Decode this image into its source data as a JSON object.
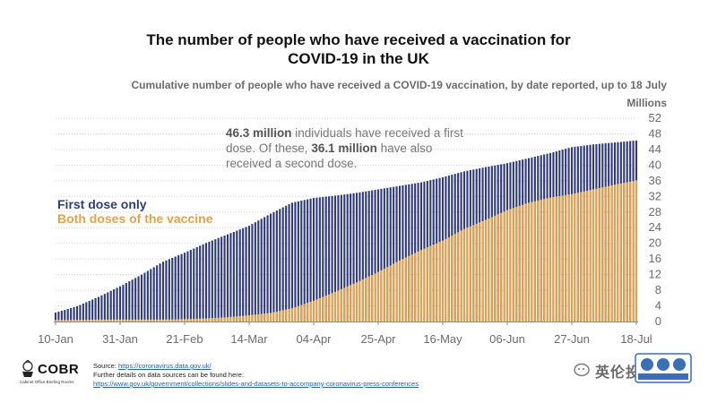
{
  "title_line1": "The number of people who have received a vaccination for",
  "title_line2": "COVID-19 in the UK",
  "subtitle": "Cumulative number of people who have received a COVID-19 vaccination, by date reported, up to 18 July",
  "unit": "Millions",
  "callout": {
    "first_value": "46.3 million",
    "first_text": " individuals have received a first dose. Of these, ",
    "second_value": "36.1 million",
    "second_text": " have also received a second dose."
  },
  "legend": {
    "first": "First dose only",
    "both": "Both doses of the vaccine"
  },
  "colors": {
    "first_dose": "#2f3b7a",
    "both_doses": "#e3a24a",
    "axis": "#8a8a8a",
    "grid": "#cfcfcf",
    "tick_text": "#6b6b6b"
  },
  "footer": {
    "logo_text": "COBR",
    "logo_sub": "Cabinet Office Briefing Rooms",
    "source_label": "Source: ",
    "source_link": "https://coronavirus.data.gov.uk/",
    "further_details": "Further details on data sources can be found here:",
    "further_link": "https://www.gov.uk/government/collections/slides-and-datasets-to-accompany-coronavirus-press-conferences"
  },
  "watermark": {
    "text": "英伦投资客"
  },
  "chart_data": {
    "type": "bar",
    "stacked": true,
    "x_tick_labels": [
      "10-Jan",
      "31-Jan",
      "21-Feb",
      "14-Mar",
      "04-Apr",
      "25-Apr",
      "16-May",
      "06-Jun",
      "27-Jun",
      "18-Jul"
    ],
    "x_start": "10-Jan",
    "x_end": "18-Jul",
    "y_ticks": [
      0,
      4,
      8,
      12,
      16,
      20,
      24,
      28,
      32,
      36,
      40,
      44,
      48,
      52
    ],
    "ylim": [
      0,
      52
    ],
    "ylabel": "Millions",
    "first_dose_cumulative": [
      {
        "date": "10-Jan",
        "value": 2.3
      },
      {
        "date": "17-Jan",
        "value": 3.9
      },
      {
        "date": "24-Jan",
        "value": 6.3
      },
      {
        "date": "31-Jan",
        "value": 9.0
      },
      {
        "date": "07-Feb",
        "value": 12.0
      },
      {
        "date": "14-Feb",
        "value": 15.3
      },
      {
        "date": "21-Feb",
        "value": 17.6
      },
      {
        "date": "28-Feb",
        "value": 20.1
      },
      {
        "date": "07-Mar",
        "value": 22.3
      },
      {
        "date": "14-Mar",
        "value": 24.5
      },
      {
        "date": "21-Mar",
        "value": 27.6
      },
      {
        "date": "28-Mar",
        "value": 30.4
      },
      {
        "date": "04-Apr",
        "value": 31.6
      },
      {
        "date": "11-Apr",
        "value": 32.2
      },
      {
        "date": "18-Apr",
        "value": 32.9
      },
      {
        "date": "25-Apr",
        "value": 33.8
      },
      {
        "date": "02-May",
        "value": 34.7
      },
      {
        "date": "09-May",
        "value": 35.6
      },
      {
        "date": "16-May",
        "value": 36.9
      },
      {
        "date": "23-May",
        "value": 38.4
      },
      {
        "date": "30-May",
        "value": 39.5
      },
      {
        "date": "06-Jun",
        "value": 40.5
      },
      {
        "date": "13-Jun",
        "value": 41.8
      },
      {
        "date": "20-Jun",
        "value": 43.1
      },
      {
        "date": "27-Jun",
        "value": 44.6
      },
      {
        "date": "04-Jul",
        "value": 45.3
      },
      {
        "date": "11-Jul",
        "value": 45.8
      },
      {
        "date": "18-Jul",
        "value": 46.3
      }
    ],
    "both_doses_cumulative": [
      {
        "date": "10-Jan",
        "value": 0.4
      },
      {
        "date": "17-Jan",
        "value": 0.4
      },
      {
        "date": "24-Jan",
        "value": 0.5
      },
      {
        "date": "31-Jan",
        "value": 0.5
      },
      {
        "date": "07-Feb",
        "value": 0.5
      },
      {
        "date": "14-Feb",
        "value": 0.5
      },
      {
        "date": "21-Feb",
        "value": 0.6
      },
      {
        "date": "28-Feb",
        "value": 0.8
      },
      {
        "date": "07-Mar",
        "value": 1.1
      },
      {
        "date": "14-Mar",
        "value": 1.6
      },
      {
        "date": "21-Mar",
        "value": 2.2
      },
      {
        "date": "28-Mar",
        "value": 3.4
      },
      {
        "date": "04-Apr",
        "value": 5.3
      },
      {
        "date": "11-Apr",
        "value": 7.6
      },
      {
        "date": "18-Apr",
        "value": 10.0
      },
      {
        "date": "25-Apr",
        "value": 12.7
      },
      {
        "date": "02-May",
        "value": 15.6
      },
      {
        "date": "09-May",
        "value": 18.3
      },
      {
        "date": "16-May",
        "value": 20.7
      },
      {
        "date": "23-May",
        "value": 23.7
      },
      {
        "date": "30-May",
        "value": 26.0
      },
      {
        "date": "06-Jun",
        "value": 28.5
      },
      {
        "date": "13-Jun",
        "value": 30.4
      },
      {
        "date": "20-Jun",
        "value": 31.7
      },
      {
        "date": "27-Jun",
        "value": 32.6
      },
      {
        "date": "04-Jul",
        "value": 33.8
      },
      {
        "date": "11-Jul",
        "value": 35.0
      },
      {
        "date": "18-Jul",
        "value": 36.1
      }
    ],
    "annotations": [
      "46.3 million individuals have received a first dose. Of these, 36.1 million have also received a second dose."
    ],
    "legend": [
      "First dose only",
      "Both doses of the vaccine"
    ],
    "legend_placement": "left",
    "grid": true
  }
}
